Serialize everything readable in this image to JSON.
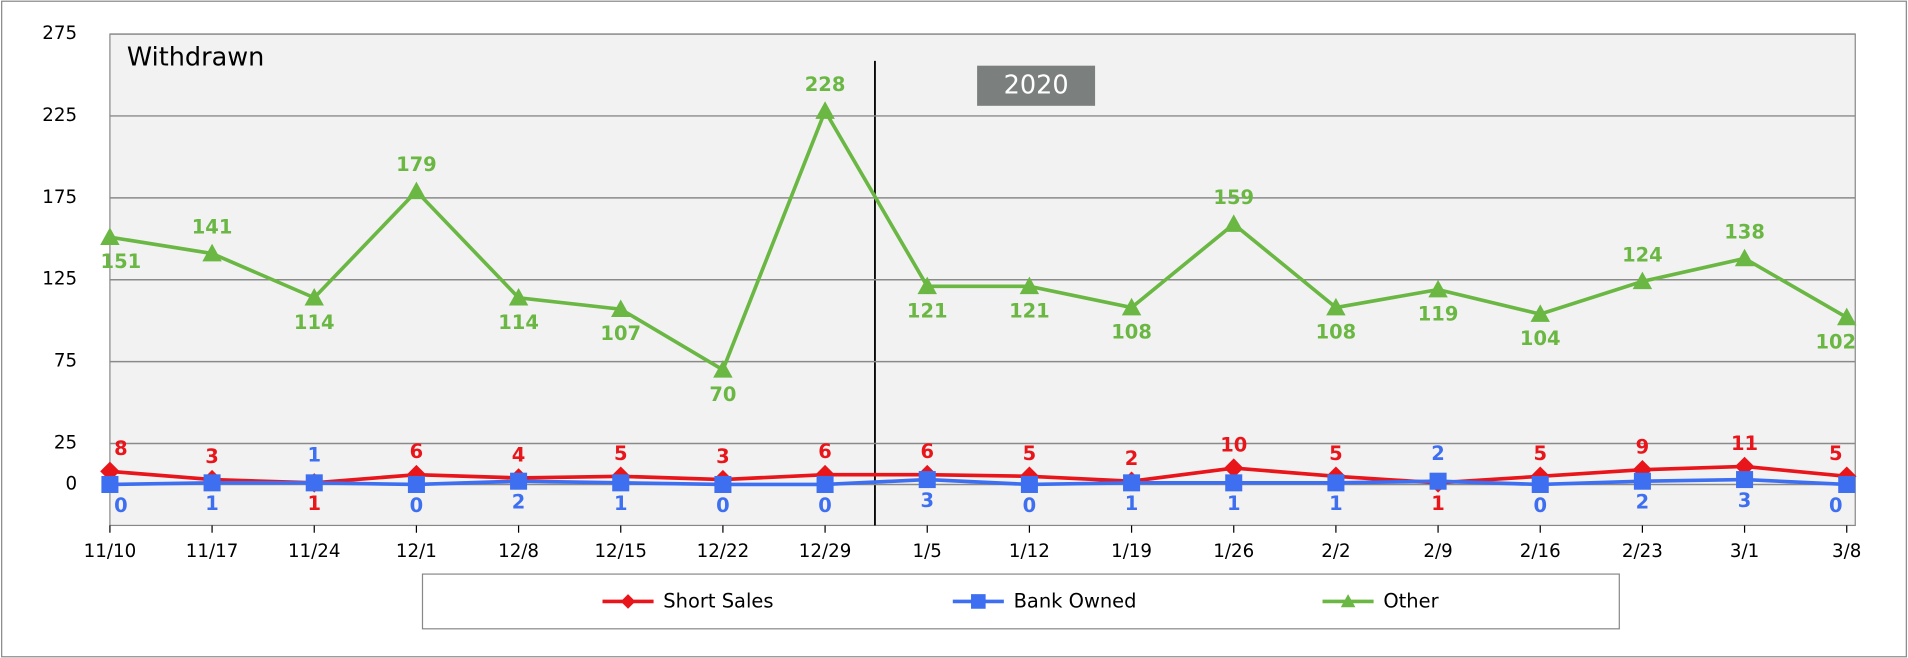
{
  "chart_data": {
    "type": "line",
    "title": "Withdrawn",
    "annotation": "2020",
    "categories": [
      "11/10",
      "11/17",
      "11/24",
      "12/1",
      "12/8",
      "12/15",
      "12/22",
      "12/29",
      "1/5",
      "1/12",
      "1/19",
      "1/26",
      "2/2",
      "2/9",
      "2/16",
      "2/23",
      "3/1",
      "3/8"
    ],
    "series": [
      {
        "name": "Short Sales",
        "color": "#e8151b",
        "marker": "diamond",
        "values": [
          8,
          3,
          1,
          6,
          4,
          5,
          3,
          6,
          6,
          5,
          2,
          10,
          5,
          1,
          5,
          9,
          11,
          5
        ]
      },
      {
        "name": "Bank Owned",
        "color": "#3d6ff0",
        "marker": "square",
        "values": [
          0,
          1,
          1,
          0,
          2,
          1,
          0,
          0,
          3,
          0,
          1,
          1,
          1,
          2,
          0,
          2,
          3,
          0
        ]
      },
      {
        "name": "Other",
        "color": "#6ab743",
        "marker": "triangle",
        "values": [
          151,
          141,
          114,
          179,
          114,
          107,
          70,
          228,
          121,
          121,
          108,
          159,
          108,
          119,
          104,
          124,
          138,
          102
        ]
      }
    ],
    "ylim": [
      -25,
      275
    ],
    "yticks": [
      0,
      25,
      75,
      125,
      175,
      225,
      275
    ],
    "grid": true,
    "legend": "bottom"
  }
}
